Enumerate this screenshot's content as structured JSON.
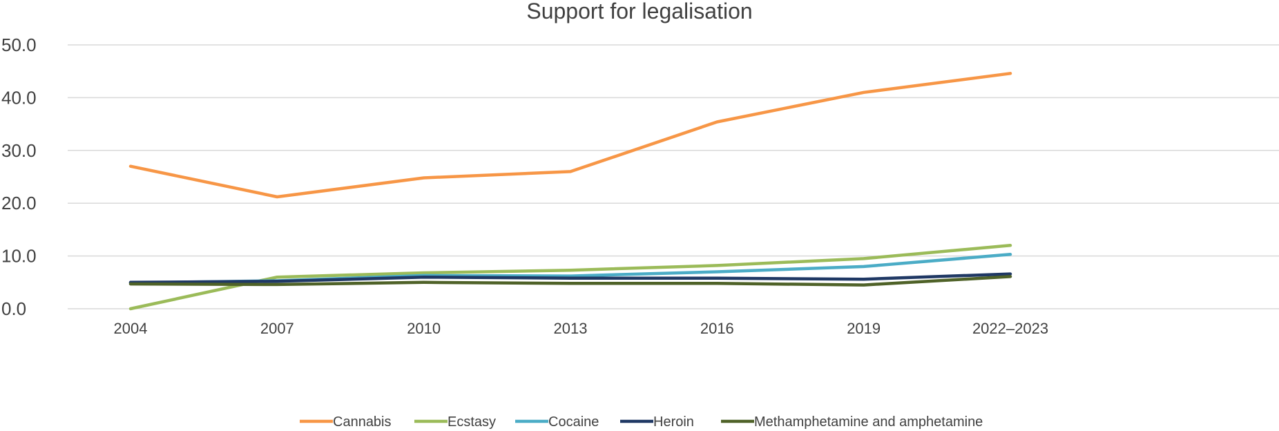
{
  "chart_data": {
    "type": "line",
    "title": "Support for legalisation",
    "categories": [
      "2004",
      "2007",
      "2010",
      "2013",
      "2016",
      "2019",
      "2022–2023"
    ],
    "y_tick_labels": [
      "0.0",
      "10.0",
      "20.0",
      "30.0",
      "40.0",
      "50.0"
    ],
    "ylim": [
      0,
      50
    ],
    "y_ticks": [
      0,
      10,
      20,
      30,
      40,
      50
    ],
    "grid": true,
    "legend_position": "bottom",
    "series": [
      {
        "name": "Cannabis",
        "color": "#F79646",
        "values": [
          27.0,
          21.2,
          24.8,
          26.0,
          35.4,
          41.0,
          44.6
        ]
      },
      {
        "name": "Ecstasy",
        "color": "#9BBB59",
        "values": [
          0.0,
          6.0,
          6.8,
          7.3,
          8.2,
          9.5,
          12.0
        ]
      },
      {
        "name": "Cocaine",
        "color": "#4BACC6",
        "values": [
          4.9,
          5.3,
          6.3,
          6.2,
          7.0,
          8.0,
          10.3
        ]
      },
      {
        "name": "Heroin",
        "color": "#1F3864",
        "values": [
          5.0,
          5.2,
          6.0,
          5.8,
          5.8,
          5.6,
          6.6
        ]
      },
      {
        "name": "Methamphetamine and amphetamine",
        "color": "#4F6228",
        "values": [
          4.7,
          4.6,
          5.0,
          4.8,
          4.8,
          4.5,
          6.1
        ]
      }
    ]
  }
}
